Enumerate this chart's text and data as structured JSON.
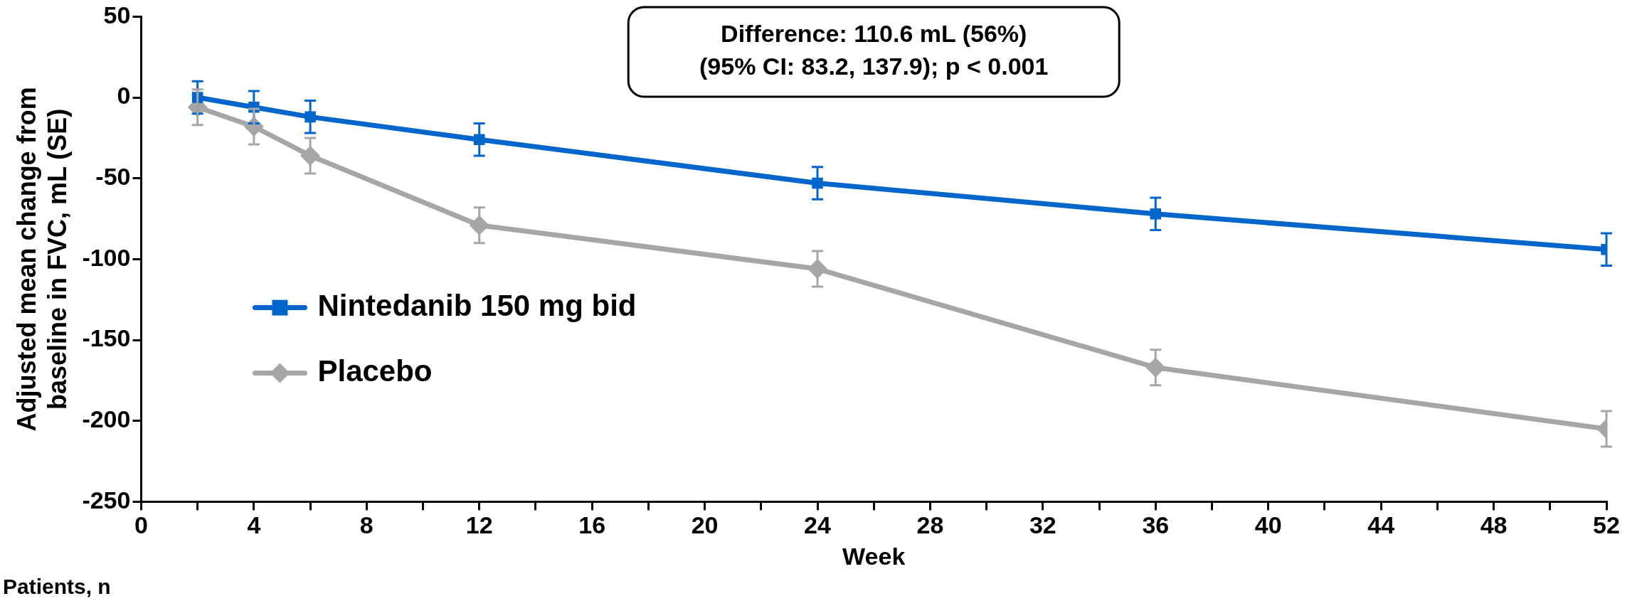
{
  "chart_data": {
    "type": "line",
    "xlabel": "Week",
    "ylabel": "Adjusted mean change from\nbaseline in FVC, mL (SE)",
    "x": [
      2,
      4,
      6,
      12,
      24,
      36,
      52
    ],
    "series": [
      {
        "name": "Nintedanib 150 mg bid",
        "color": "#0066cc",
        "marker": "square",
        "values": [
          0,
          -6,
          -12,
          -26,
          -53,
          -72,
          -94
        ],
        "errors": [
          10,
          10,
          10,
          10,
          10,
          10,
          10
        ]
      },
      {
        "name": "Placebo",
        "color": "#a6a6a6",
        "marker": "diamond",
        "values": [
          -6,
          -18,
          -36,
          -79,
          -106,
          -167,
          -205
        ],
        "errors": [
          11,
          11,
          11,
          11,
          11,
          11,
          11
        ]
      }
    ],
    "xlim": [
      0,
      52
    ],
    "xticks": [
      0,
      {
        "value": 2,
        "label": null
      },
      4,
      {
        "value": 6,
        "label": null
      },
      8,
      {
        "value": 10,
        "label": null
      },
      12,
      {
        "value": 14,
        "label": null
      },
      16,
      {
        "value": 18,
        "label": null
      },
      20,
      {
        "value": 22,
        "label": null
      },
      24,
      {
        "value": 26,
        "label": null
      },
      28,
      {
        "value": 30,
        "label": null
      },
      32,
      {
        "value": 34,
        "label": null
      },
      36,
      {
        "value": 38,
        "label": null
      },
      40,
      {
        "value": 42,
        "label": null
      },
      44,
      {
        "value": 46,
        "label": null
      },
      48,
      {
        "value": 50,
        "label": null
      },
      52
    ],
    "ylim": [
      -250,
      50
    ],
    "yticks": [
      -250,
      -200,
      -150,
      -100,
      -50,
      0,
      50
    ],
    "grid": false,
    "legend": "left",
    "line_style": "solid",
    "annotations": [
      "Difference: 110.6 mL (56%)",
      "(95% CI: 83.2, 137.9); p < 0.001",
      "Patients, n"
    ]
  }
}
